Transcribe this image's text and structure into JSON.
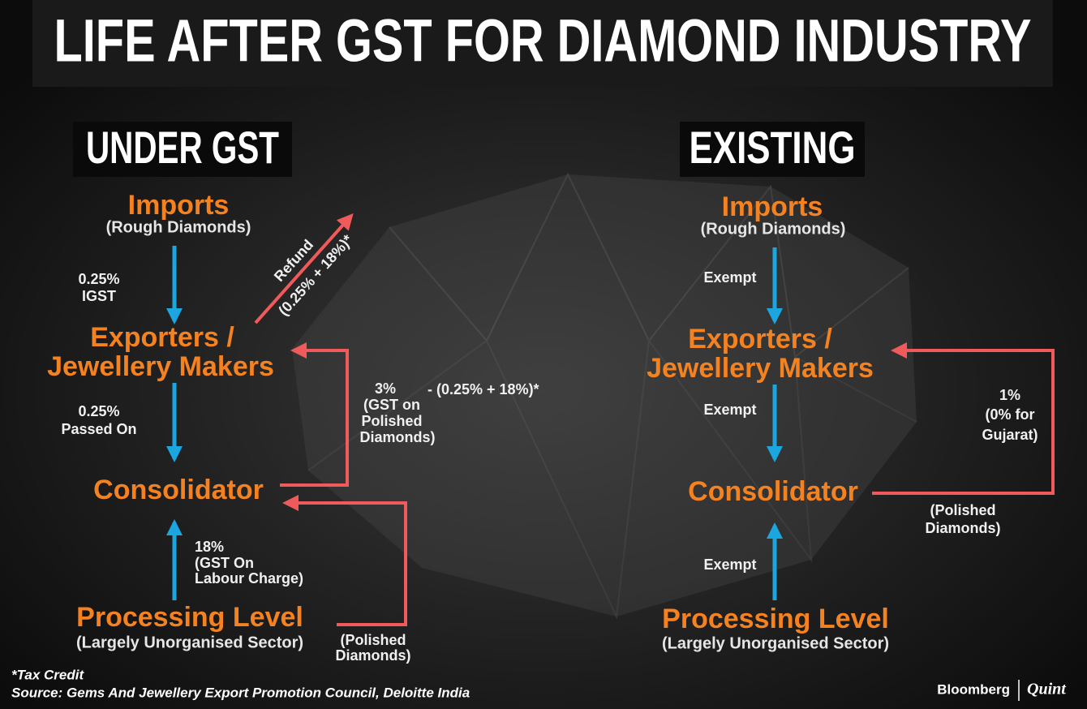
{
  "title": "LIFE AFTER GST FOR DIAMOND INDUSTRY",
  "under_gst": {
    "heading": "UNDER GST",
    "nodes": [
      {
        "lines": [
          "Imports"
        ],
        "sub": "(Rough Diamonds)"
      },
      {
        "lines": [
          "Exporters /",
          "Jewellery Makers"
        ]
      },
      {
        "lines": [
          "Consolidator"
        ]
      },
      {
        "lines": [
          "Processing Level"
        ],
        "sub": "(Largely Unorganised Sector)"
      }
    ],
    "edges": [
      {
        "lines": [
          "0.25%",
          "IGST"
        ]
      },
      {
        "lines": [
          "Refund",
          "(0.25% + 18%)*"
        ]
      },
      {
        "lines": [
          "0.25%",
          "Passed On"
        ]
      },
      {
        "lines": [
          "3%",
          "(GST on",
          "Polished",
          "Diamonds)"
        ],
        "note": "-  (0.25% + 18%)*"
      },
      {
        "lines": [
          "18%",
          "(GST On",
          "Labour Charge)"
        ]
      },
      {
        "lines": [
          "(Polished",
          "Diamonds)"
        ]
      }
    ]
  },
  "existing": {
    "heading": "EXISTING",
    "nodes": [
      {
        "lines": [
          "Imports"
        ],
        "sub": "(Rough Diamonds)"
      },
      {
        "lines": [
          "Exporters /",
          "Jewellery Makers"
        ]
      },
      {
        "lines": [
          "Consolidator"
        ]
      },
      {
        "lines": [
          "Processing Level"
        ],
        "sub": "(Largely Unorganised Sector)"
      }
    ],
    "edges": [
      {
        "lines": [
          "Exempt"
        ]
      },
      {
        "lines": [
          "Exempt"
        ]
      },
      {
        "lines": [
          "Exempt"
        ]
      },
      {
        "lines": [
          "1%",
          "(0% for",
          "Gujarat)"
        ]
      },
      {
        "lines": [
          "(Polished",
          "Diamonds)"
        ]
      }
    ]
  },
  "footer": {
    "footnote": "*Tax Credit",
    "source": "Source: Gems And Jewellery Export Promotion Council, Deloitte India",
    "brand": [
      "Bloomberg",
      "Quint"
    ]
  }
}
